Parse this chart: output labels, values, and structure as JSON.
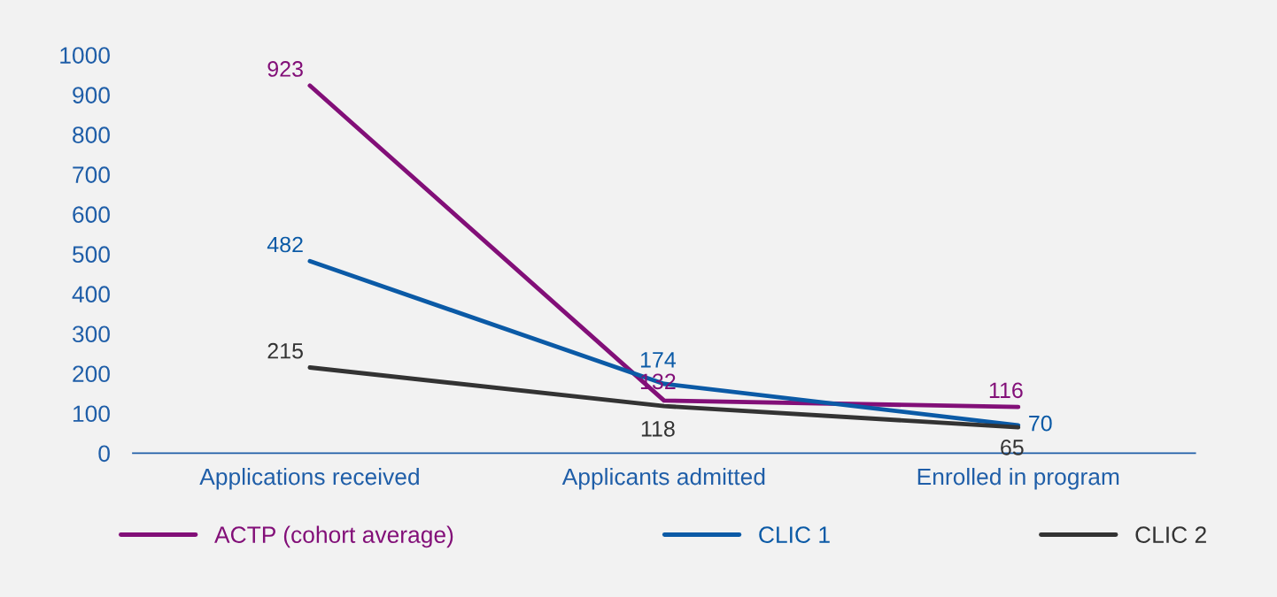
{
  "chart_data": {
    "type": "line",
    "categories": [
      "Applications received",
      "Applicants admitted",
      "Enrolled in program"
    ],
    "series": [
      {
        "name": "ACTP (cohort average)",
        "color": "#820f78",
        "values": [
          923,
          132,
          116
        ]
      },
      {
        "name": "CLIC 1",
        "color": "#0b5aa6",
        "values": [
          482,
          174,
          70
        ]
      },
      {
        "name": "CLIC 2",
        "color": "#333333",
        "values": [
          215,
          118,
          65
        ]
      }
    ],
    "ylim": [
      0,
      1000
    ],
    "yticks": [
      0,
      100,
      200,
      300,
      400,
      500,
      600,
      700,
      800,
      900,
      1000
    ],
    "data_labels": true,
    "grid": false,
    "legend": "bottom",
    "marker": "none",
    "line_style": "solid"
  }
}
